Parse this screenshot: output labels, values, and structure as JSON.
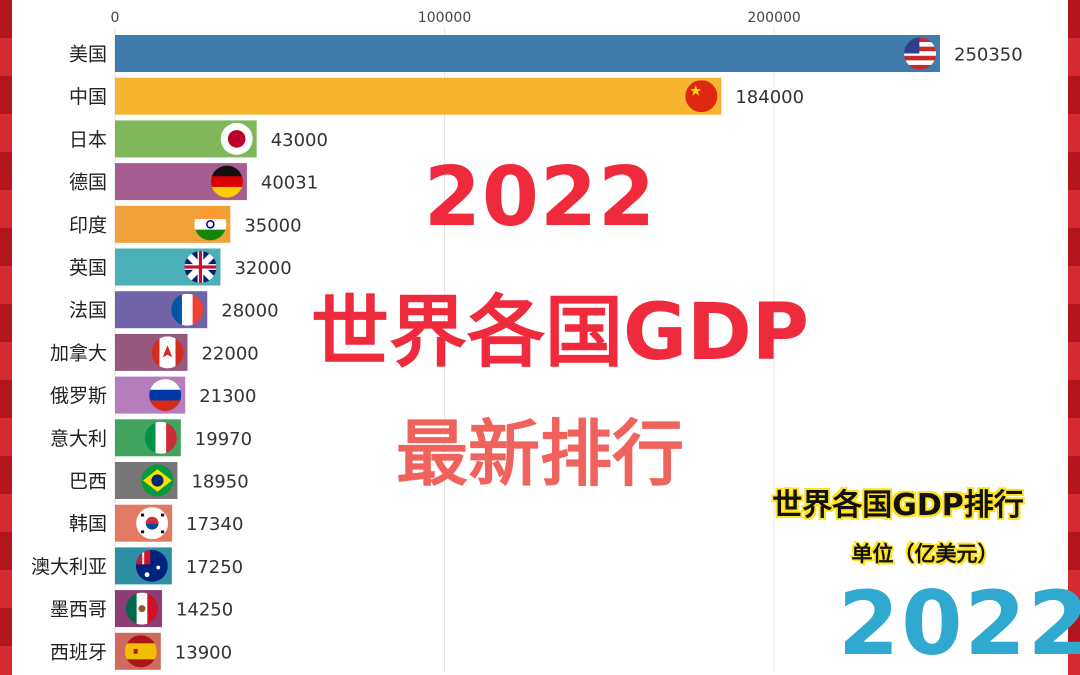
{
  "chart_data": {
    "type": "bar",
    "orientation": "horizontal",
    "title": "世界各国GDP排行",
    "unit": "单位（亿美元）",
    "year": "2022",
    "x_ticks": [
      "0",
      "100000",
      "200000"
    ],
    "xlim": [
      0,
      250350
    ],
    "grid": true,
    "categories": [
      "美国",
      "中国",
      "日本",
      "德国",
      "印度",
      "英国",
      "法国",
      "加拿大",
      "俄罗斯",
      "意大利",
      "巴西",
      "韩国",
      "澳大利亚",
      "墨西哥",
      "西班牙"
    ],
    "values": [
      250350,
      184000,
      43000,
      40031,
      35000,
      32000,
      28000,
      22000,
      21300,
      19970,
      18950,
      17340,
      17250,
      14250,
      13900
    ],
    "bar_colors": [
      "#3f7cac",
      "#f6b531",
      "#7fb75a",
      "#a65d8f",
      "#f0a13a",
      "#4aafb7",
      "#7063a8",
      "#97587e",
      "#b57dbb",
      "#41a35e",
      "#777777",
      "#e27a63",
      "#2f8fa3",
      "#8c3d74",
      "#cf6a5e"
    ],
    "flag_icons": [
      "us-flag-icon",
      "china-flag-icon",
      "japan-flag-icon",
      "germany-flag-icon",
      "india-flag-icon",
      "uk-flag-icon",
      "france-flag-icon",
      "canada-flag-icon",
      "russia-flag-icon",
      "italy-flag-icon",
      "brazil-flag-icon",
      "korea-flag-icon",
      "australia-flag-icon",
      "mexico-flag-icon",
      "spain-flag-icon"
    ]
  },
  "overlay": {
    "year": "2022",
    "title": "世界各国GDP",
    "subtitle": "最新排行"
  },
  "corner": {
    "title": "世界各国GDP排行",
    "unit": "单位（亿美元）",
    "year": "2022"
  },
  "colors": {
    "overlay_red": "#ee2a3c",
    "corner_blue": "#2fa9cf",
    "frame_red": "#b3151d"
  }
}
